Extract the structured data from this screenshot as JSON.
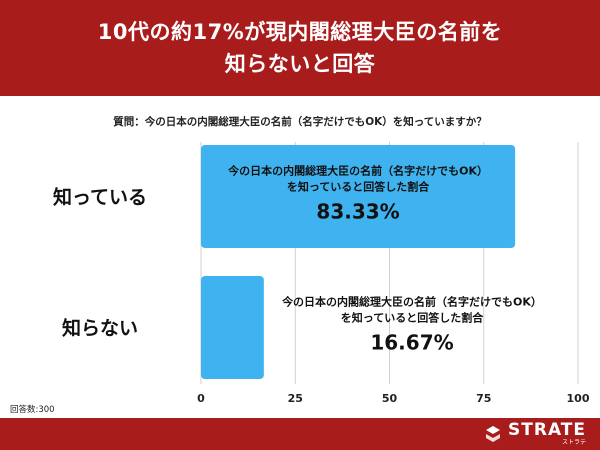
{
  "header": {
    "line1": "10代の約17%が現内閣総理大臣の名前を",
    "line2": "知らないと回答"
  },
  "question": "質問：今の日本の内閣総理大臣の名前（名字だけでもOK）を知っていますか？",
  "footer": {
    "respondents": "回答数:300",
    "brand": "STRATE",
    "brand_sub": "ストラテ"
  },
  "colors": {
    "bar": "#3fb3ef",
    "header_bg": "#a81c1c",
    "grid": "#cfcfcf"
  },
  "chart_data": {
    "type": "bar",
    "orientation": "horizontal",
    "categories": [
      "知っている",
      "知らない"
    ],
    "values": [
      83.33,
      16.67
    ],
    "value_labels": [
      "83.33%",
      "16.67%"
    ],
    "annotation_lines": [
      "今の日本の内閣総理大臣の名前（名字だけでもOK）",
      "を知っていると回答した割合"
    ],
    "xlim": [
      0,
      100
    ],
    "xticks": [
      0,
      25,
      50,
      75,
      100
    ],
    "grid": true
  }
}
